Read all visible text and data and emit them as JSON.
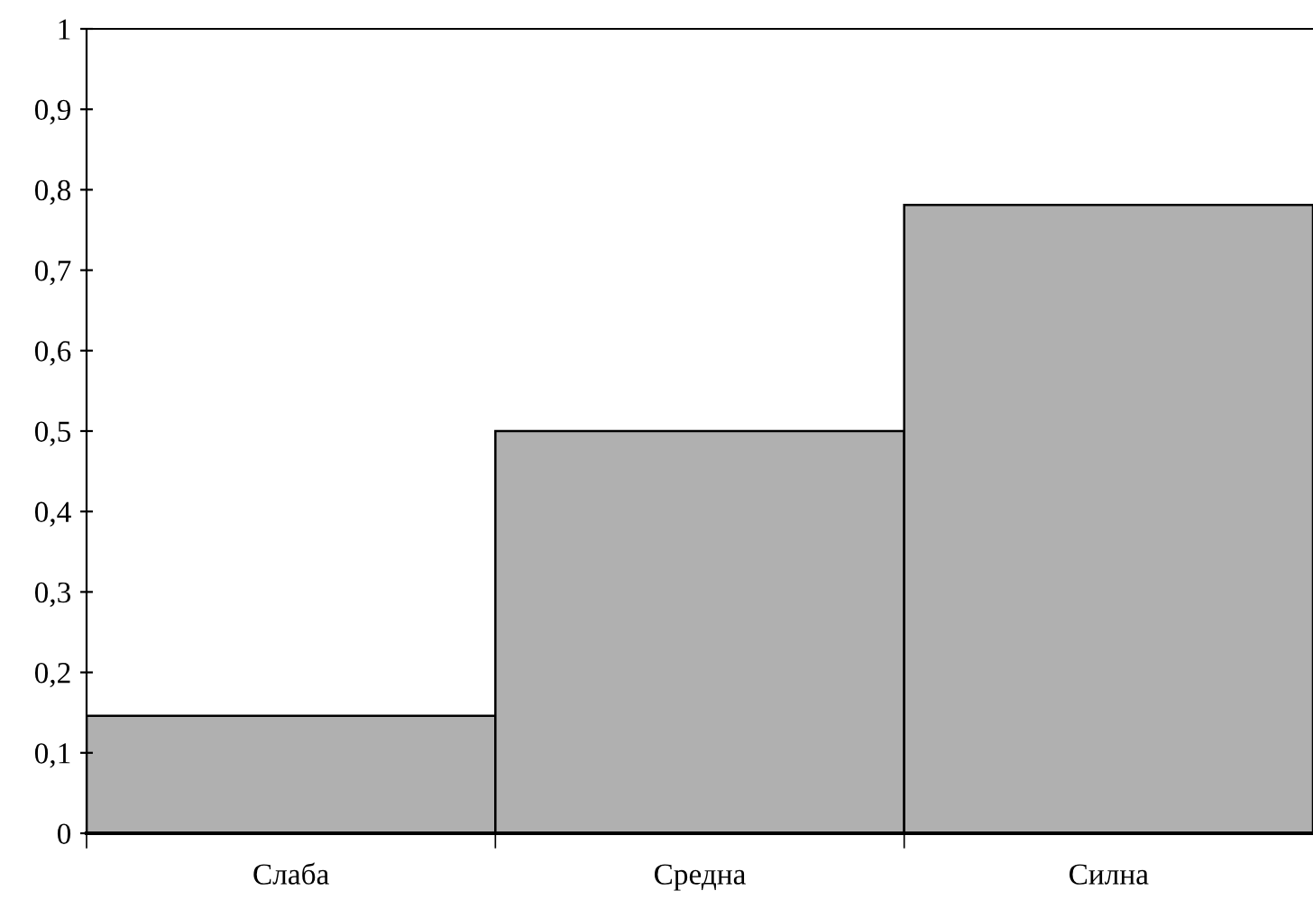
{
  "chart_data": {
    "type": "bar",
    "categories": [
      "Слаба",
      "Средна",
      "Силна"
    ],
    "values": [
      0.146,
      0.5,
      0.781
    ],
    "color": "#b0b0b0",
    "ylim": [
      0,
      1
    ],
    "yticks": [
      0,
      {
        "value": 0.1,
        "label": "0,1"
      },
      {
        "value": 0.2,
        "label": "0,2"
      },
      {
        "value": 0.3,
        "label": "0,3"
      },
      {
        "value": 0.4,
        "label": "0,4"
      },
      {
        "value": 0.5,
        "label": "0,5"
      },
      {
        "value": 0.6,
        "label": "0,6"
      },
      {
        "value": 0.7,
        "label": "0,7"
      },
      {
        "value": 0.8,
        "label": "0,8"
      },
      {
        "value": 0.9,
        "label": "0,9"
      },
      1
    ],
    "grid": false,
    "legend": false
  }
}
